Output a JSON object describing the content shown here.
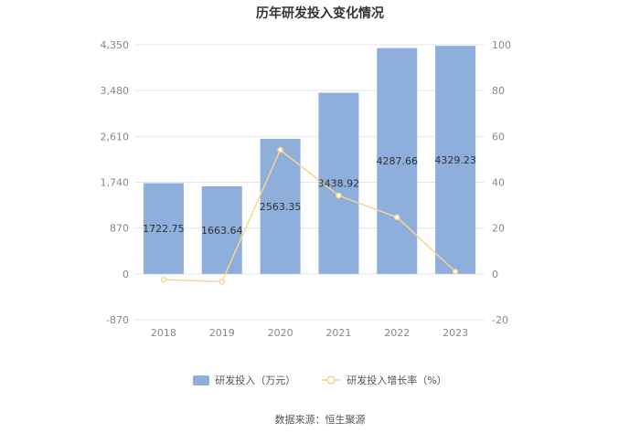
{
  "chart_data": {
    "type": "bar",
    "title": "历年研发投入变化情况",
    "categories": [
      "2018",
      "2019",
      "2020",
      "2021",
      "2022",
      "2023"
    ],
    "series": [
      {
        "name": "研发投入（万元）",
        "type": "bar",
        "axis": "left",
        "values": [
          1722.75,
          1663.64,
          2563.35,
          3438.92,
          4287.66,
          4329.23
        ],
        "data_labels": [
          "1722.75",
          "1663.64",
          "2563.35",
          "3438.92",
          "4287.66",
          "4329.23"
        ],
        "color": "#8eaedb"
      },
      {
        "name": "研发投入增长率（%）",
        "type": "line",
        "axis": "right",
        "values": [
          -2.5,
          -3.4,
          54.1,
          34.2,
          24.7,
          1.0
        ],
        "color": "#f5d78e"
      }
    ],
    "y_left": {
      "ylim": [
        -870,
        4350
      ],
      "ticks": [
        4350,
        3480,
        2610,
        1740,
        870,
        0,
        -870
      ],
      "tick_labels": [
        "4,350",
        "3,480",
        "2,610",
        "1,740",
        "870",
        "0",
        "-870"
      ]
    },
    "y_right": {
      "ylim": [
        -20,
        100
      ],
      "ticks": [
        100,
        80,
        60,
        40,
        20,
        0,
        -20
      ],
      "tick_labels": [
        "100",
        "80",
        "60",
        "40",
        "20",
        "0",
        "-20"
      ]
    },
    "grid": true,
    "legend_position": "bottom"
  },
  "source": "数据来源：恒生聚源"
}
